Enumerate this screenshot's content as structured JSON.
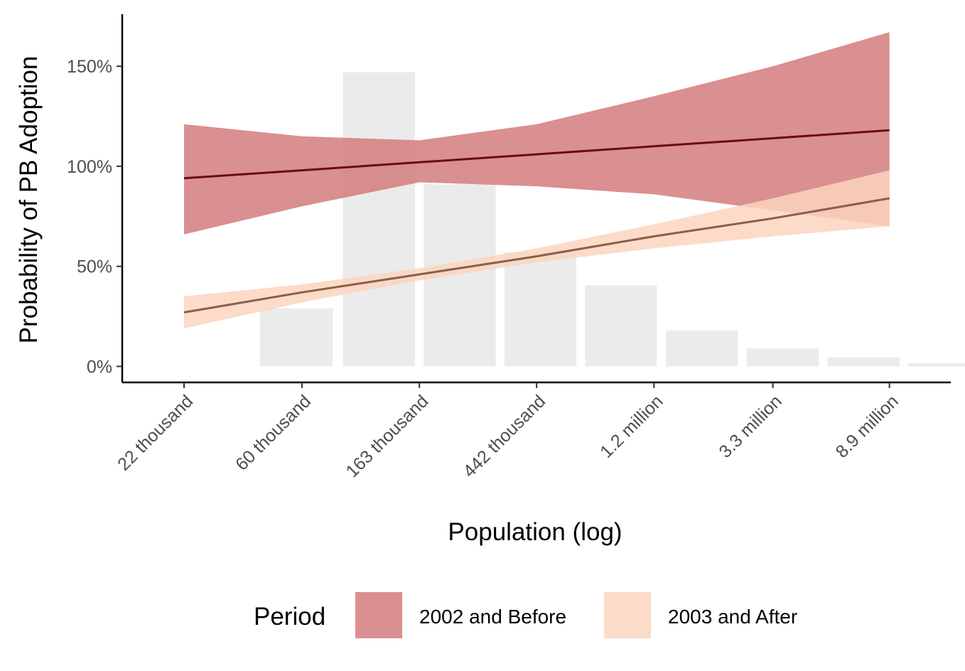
{
  "chart_data": {
    "type": "line",
    "xlabel": "Population (log)",
    "ylabel": "Probability of PB Adoption",
    "x_scale": "log",
    "x_ticks": [
      {
        "value": 22000,
        "label": "22 thousand"
      },
      {
        "value": 60000,
        "label": "60 thousand"
      },
      {
        "value": 163000,
        "label": "163 thousand"
      },
      {
        "value": 442000,
        "label": "442 thousand"
      },
      {
        "value": 1200000,
        "label": "1.2 million"
      },
      {
        "value": 3300000,
        "label": "3.3 million"
      },
      {
        "value": 8900000,
        "label": "8.9 million"
      }
    ],
    "y_ticks": [
      {
        "value": 0,
        "label": "0%"
      },
      {
        "value": 0.5,
        "label": "50%"
      },
      {
        "value": 1.0,
        "label": "100%"
      },
      {
        "value": 1.5,
        "label": "150%"
      }
    ],
    "xlim": [
      13000,
      15000000
    ],
    "ylim": [
      -0.08,
      1.76
    ],
    "grid": false,
    "histogram": {
      "color": "#ebebeb",
      "bins": [
        {
          "x_start": 42000,
          "x_end": 78000,
          "height": 0.29
        },
        {
          "x_start": 85000,
          "x_end": 157000,
          "height": 1.47
        },
        {
          "x_start": 169000,
          "x_end": 312000,
          "height": 0.91
        },
        {
          "x_start": 336000,
          "x_end": 620000,
          "height": 0.57
        },
        {
          "x_start": 668000,
          "x_end": 1230000,
          "height": 0.405
        },
        {
          "x_start": 1330000,
          "x_end": 2450000,
          "height": 0.18
        },
        {
          "x_start": 2640000,
          "x_end": 4880000,
          "height": 0.09
        },
        {
          "x_start": 5250000,
          "x_end": 9700000,
          "height": 0.045
        },
        {
          "x_start": 10400000,
          "x_end": 19300000,
          "height": 0.016
        }
      ]
    },
    "series": [
      {
        "name": "2002 and Before",
        "fill": "#d27677",
        "fill_opacity": 0.82,
        "line_color": "#6b0a0e",
        "x": [
          22000,
          60000,
          163000,
          442000,
          1200000,
          3300000,
          8900000
        ],
        "y": [
          0.94,
          0.98,
          1.02,
          1.06,
          1.1,
          1.14,
          1.18
        ],
        "ymin": [
          0.66,
          0.8,
          0.92,
          0.9,
          0.86,
          0.78,
          0.7
        ],
        "ymax": [
          1.21,
          1.15,
          1.13,
          1.21,
          1.35,
          1.5,
          1.67
        ]
      },
      {
        "name": "2003 and After",
        "fill": "#fcd5bf",
        "fill_opacity": 0.85,
        "line_color": "#8c5e4a",
        "x": [
          22000,
          60000,
          163000,
          442000,
          1200000,
          3300000,
          8900000
        ],
        "y": [
          0.27,
          0.37,
          0.46,
          0.55,
          0.65,
          0.74,
          0.84
        ],
        "ymin": [
          0.19,
          0.32,
          0.43,
          0.52,
          0.59,
          0.65,
          0.7
        ],
        "ymax": [
          0.35,
          0.41,
          0.49,
          0.59,
          0.71,
          0.84,
          0.98
        ]
      }
    ],
    "legend": {
      "title": "Period",
      "position": "bottom",
      "entries": [
        "2002 and Before",
        "2003 and After"
      ]
    }
  }
}
